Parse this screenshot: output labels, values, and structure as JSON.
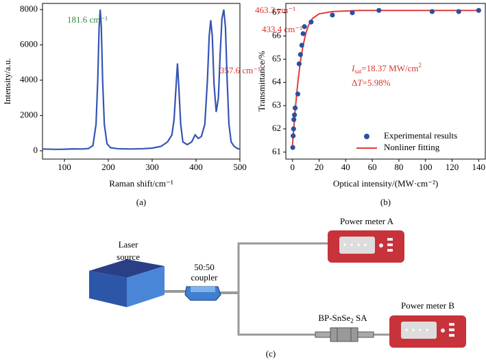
{
  "chart_data": [
    {
      "type": "line",
      "panel": "(a)",
      "xlabel": "Raman shift/cm⁻¹",
      "ylabel": "Intensity/a.u.",
      "color": "#3454b4",
      "xlim": [
        50,
        500
      ],
      "ylim": [
        -470,
        8350
      ],
      "xticks": [
        100,
        200,
        300,
        400,
        500
      ],
      "yticks": [
        0,
        2000,
        4000,
        6000,
        8000
      ],
      "x": [
        50,
        80,
        100,
        120,
        140,
        155,
        165,
        172,
        176,
        179,
        181.6,
        184,
        187,
        191,
        197,
        205,
        220,
        250,
        280,
        300,
        320,
        335,
        345,
        350,
        354,
        357.6,
        361,
        365,
        370,
        380,
        390,
        398,
        405,
        412,
        420,
        426,
        430,
        433.4,
        437,
        441,
        446,
        451,
        455,
        459,
        463.3,
        467,
        471,
        475,
        480,
        487,
        495,
        500
      ],
      "values": [
        100,
        80,
        90,
        110,
        100,
        130,
        300,
        1500,
        4000,
        7000,
        8000,
        7000,
        4000,
        1500,
        400,
        180,
        120,
        100,
        120,
        150,
        250,
        500,
        900,
        1800,
        3500,
        4950,
        3500,
        1500,
        500,
        350,
        500,
        900,
        700,
        800,
        1500,
        4000,
        6500,
        7400,
        6500,
        3800,
        2200,
        3000,
        5500,
        7500,
        8000,
        7000,
        4000,
        1500,
        500,
        250,
        120,
        100
      ],
      "annotations": [
        {
          "text": "181.6 cm⁻¹",
          "color": "#2e8b3a"
        },
        {
          "text": "357.6 cm⁻¹",
          "color": "#d9342b"
        },
        {
          "text": "433.4 cm⁻¹",
          "color": "#d9342b"
        },
        {
          "text": "463.3 cm⁻¹",
          "color": "#d9342b"
        }
      ]
    },
    {
      "type": "scatter",
      "panel": "(b)",
      "xlabel": "Optical intensity/(MW·cm⁻²)",
      "ylabel": "Transmittance/%",
      "xlim": [
        -5,
        145
      ],
      "ylim": [
        60.7,
        67.4
      ],
      "xticks": [
        0,
        20,
        40,
        60,
        80,
        100,
        120,
        140
      ],
      "yticks": [
        61,
        62,
        63,
        64,
        65,
        66,
        67
      ],
      "legend": "lower right",
      "series": [
        {
          "name": "Experimental results",
          "color": "#2c4fa0",
          "style": "points",
          "x": [
            0.2,
            0.5,
            0.8,
            1,
            1.5,
            2,
            4,
            5,
            6,
            7,
            8,
            9,
            14,
            30,
            45,
            65,
            105,
            125,
            140
          ],
          "values": [
            61.2,
            61.7,
            62.0,
            62.4,
            62.6,
            62.9,
            63.5,
            64.8,
            65.2,
            65.6,
            66.1,
            66.4,
            66.6,
            66.9,
            67.0,
            67.1,
            67.05,
            67.05,
            67.1
          ]
        },
        {
          "name": "Nonliner fitting",
          "color": "#e03a3a",
          "style": "line",
          "x": [
            0,
            2,
            4,
            6,
            8,
            10,
            12,
            15,
            20,
            30,
            50,
            140
          ],
          "values": [
            61.3,
            62.8,
            64.0,
            64.9,
            65.6,
            66.1,
            66.45,
            66.75,
            66.95,
            67.05,
            67.1,
            67.1
          ]
        }
      ],
      "annotations": [
        {
          "symbol": "I",
          "subscript": "sat",
          "text": "=18.37 MW/cm",
          "superscript": "2",
          "color": "#d9342b"
        },
        {
          "prefix": "Δ",
          "symbol": "T",
          "text": "=5.98%",
          "color": "#d9342b"
        }
      ]
    }
  ],
  "diagram": {
    "laser": [
      "Laser",
      "source"
    ],
    "coupler": [
      "50:50",
      "coupler"
    ],
    "meter_a": "Power meter A",
    "meter_b": "Power meter B",
    "sa": {
      "text": "BP-SnSe",
      "subscript": "2",
      "suffix": " SA"
    },
    "panel": "(c)"
  }
}
